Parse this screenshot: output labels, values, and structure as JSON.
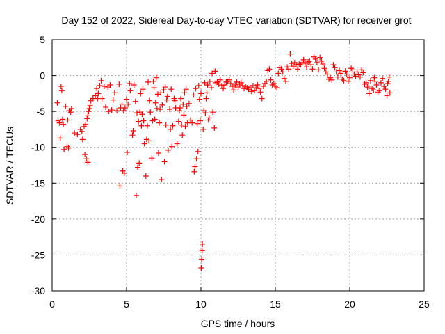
{
  "chart_data": {
    "type": "scatter",
    "title": "Day 152 of 2022, Sidereal Day-to-day VTEC variation (SDTVAR) for receiver grot",
    "xlabel": "GPS time / hours",
    "ylabel": "SDTVAR / TECUs",
    "xlim": [
      0,
      25
    ],
    "ylim": [
      -30,
      5
    ],
    "xticks": [
      "0",
      "5",
      "10",
      "15",
      "20",
      "25"
    ],
    "yticks": [
      "5",
      "0",
      "-5",
      "-10",
      "-15",
      "-20",
      "-25",
      "-30"
    ],
    "grid": true,
    "marker": "plus",
    "color": "#ff0000",
    "series": [
      {
        "name": "SDTVAR",
        "points": [
          [
            0.35,
            -3.8
          ],
          [
            0.4,
            -6.3
          ],
          [
            0.5,
            -6.6
          ],
          [
            0.55,
            -8.7
          ],
          [
            0.6,
            -1.5
          ],
          [
            0.65,
            -2.1
          ],
          [
            0.7,
            -6.1
          ],
          [
            0.75,
            -6.8
          ],
          [
            0.8,
            -10.3
          ],
          [
            0.9,
            -4.3
          ],
          [
            1.0,
            -9.9
          ],
          [
            1.05,
            -6.2
          ],
          [
            1.1,
            -10.1
          ],
          [
            1.15,
            -4.9
          ],
          [
            1.25,
            -5.1
          ],
          [
            1.3,
            -4.6
          ],
          [
            1.5,
            -8.0
          ],
          [
            1.7,
            -8.2
          ],
          [
            1.9,
            -7.5
          ],
          [
            2.0,
            -7.8
          ],
          [
            2.05,
            -8.9
          ],
          [
            2.15,
            -7.1
          ],
          [
            2.2,
            -11.0
          ],
          [
            2.25,
            -6.8
          ],
          [
            2.3,
            -11.6
          ],
          [
            2.35,
            -6.0
          ],
          [
            2.4,
            -5.6
          ],
          [
            2.4,
            -12.1
          ],
          [
            2.45,
            -5.0
          ],
          [
            2.5,
            -4.6
          ],
          [
            2.55,
            -4.2
          ],
          [
            2.6,
            -3.5
          ],
          [
            2.75,
            -3.2
          ],
          [
            2.9,
            -2.8
          ],
          [
            3.0,
            -1.8
          ],
          [
            3.05,
            -3.2
          ],
          [
            3.1,
            -2.5
          ],
          [
            3.2,
            -1.4
          ],
          [
            3.3,
            -0.7
          ],
          [
            3.35,
            -3.2
          ],
          [
            3.5,
            -1.5
          ],
          [
            3.6,
            -4.4
          ],
          [
            3.75,
            -1.6
          ],
          [
            3.8,
            -5.0
          ],
          [
            3.9,
            -1.3
          ],
          [
            4.0,
            -4.8
          ],
          [
            4.1,
            -3.4
          ],
          [
            4.2,
            -2.4
          ],
          [
            4.35,
            -4.9
          ],
          [
            4.5,
            -1.2
          ],
          [
            4.55,
            -15.4
          ],
          [
            4.6,
            -4.5
          ],
          [
            4.7,
            -4.0
          ],
          [
            4.75,
            -13.3
          ],
          [
            4.8,
            -4.9
          ],
          [
            4.85,
            -13.6
          ],
          [
            4.9,
            -4.5
          ],
          [
            5.0,
            -3.3
          ],
          [
            5.05,
            -10.7
          ],
          [
            5.1,
            -4.0
          ],
          [
            5.2,
            -1.1
          ],
          [
            5.25,
            -2.1
          ],
          [
            5.4,
            -8.3
          ],
          [
            5.45,
            -7.7
          ],
          [
            5.5,
            -1.3
          ],
          [
            5.6,
            -3.6
          ],
          [
            5.65,
            -16.7
          ],
          [
            5.7,
            -5.2
          ],
          [
            5.75,
            -12.8
          ],
          [
            5.8,
            -6.4
          ],
          [
            5.85,
            -12.2
          ],
          [
            5.9,
            -5.1
          ],
          [
            5.95,
            -2.5
          ],
          [
            6.0,
            -7.0
          ],
          [
            6.05,
            -5.4
          ],
          [
            6.1,
            -1.9
          ],
          [
            6.15,
            -6.3
          ],
          [
            6.2,
            -9.5
          ],
          [
            6.3,
            -14.0
          ],
          [
            6.35,
            -8.9
          ],
          [
            6.4,
            -7.0
          ],
          [
            6.45,
            -0.9
          ],
          [
            6.5,
            -9.1
          ],
          [
            6.55,
            -3.5
          ],
          [
            6.6,
            -5.1
          ],
          [
            6.7,
            -11.5
          ],
          [
            6.75,
            -6.3
          ],
          [
            6.8,
            -0.8
          ],
          [
            6.85,
            -1.7
          ],
          [
            6.9,
            -6.1
          ],
          [
            6.95,
            -3.8
          ],
          [
            7.0,
            -0.3
          ],
          [
            7.05,
            -4.6
          ],
          [
            7.1,
            -2.6
          ],
          [
            7.15,
            -10.8
          ],
          [
            7.2,
            -6.6
          ],
          [
            7.25,
            -4.7
          ],
          [
            7.3,
            -2.4
          ],
          [
            7.35,
            -14.5
          ],
          [
            7.4,
            -4.1
          ],
          [
            7.5,
            -2.0
          ],
          [
            7.55,
            -12.0
          ],
          [
            7.6,
            -1.6
          ],
          [
            7.65,
            -6.9
          ],
          [
            7.7,
            -3.4
          ],
          [
            7.75,
            -2.9
          ],
          [
            7.8,
            -10.4
          ],
          [
            7.9,
            -4.7
          ],
          [
            7.95,
            -7.5
          ],
          [
            8.0,
            -1.9
          ],
          [
            8.05,
            -9.9
          ],
          [
            8.1,
            -7.0
          ],
          [
            8.2,
            -3.2
          ],
          [
            8.25,
            -3.5
          ],
          [
            8.3,
            -4.5
          ],
          [
            8.4,
            -9.5
          ],
          [
            8.5,
            -6.4
          ],
          [
            8.55,
            -4.9
          ],
          [
            8.6,
            -4.5
          ],
          [
            8.65,
            -3.2
          ],
          [
            8.7,
            -6.9
          ],
          [
            8.75,
            -8.3
          ],
          [
            8.8,
            -4.0
          ],
          [
            8.85,
            -5.5
          ],
          [
            8.9,
            -2.4
          ],
          [
            8.95,
            -7.1
          ],
          [
            9.0,
            -1.9
          ],
          [
            9.05,
            -4.3
          ],
          [
            9.1,
            -6.6
          ],
          [
            9.2,
            -3.9
          ],
          [
            9.3,
            -6.2
          ],
          [
            9.4,
            -6.6
          ],
          [
            9.5,
            -2.7
          ],
          [
            9.55,
            -13.4
          ],
          [
            9.6,
            -12.7
          ],
          [
            9.65,
            -1.8
          ],
          [
            9.7,
            -11.6
          ],
          [
            9.75,
            -6.7
          ],
          [
            9.8,
            -10.6
          ],
          [
            9.85,
            -1.4
          ],
          [
            9.9,
            -3.3
          ],
          [
            9.95,
            -6.3
          ],
          [
            10.0,
            -2.5
          ],
          [
            10.02,
            -26.8
          ],
          [
            10.05,
            -25.6
          ],
          [
            10.08,
            -24.4
          ],
          [
            10.1,
            -23.5
          ],
          [
            10.15,
            -7.5
          ],
          [
            10.2,
            -4.9
          ],
          [
            10.25,
            -1.0
          ],
          [
            10.3,
            -5.2
          ],
          [
            10.35,
            -3.2
          ],
          [
            10.4,
            -2.4
          ],
          [
            10.45,
            -1.3
          ],
          [
            10.5,
            -6.2
          ],
          [
            10.55,
            -5.9
          ],
          [
            10.6,
            -0.8
          ],
          [
            10.7,
            -1.7
          ],
          [
            10.75,
            0.3
          ],
          [
            10.8,
            -5.1
          ],
          [
            10.9,
            -7.3
          ],
          [
            10.95,
            0.6
          ],
          [
            11.0,
            -1.0
          ],
          [
            11.1,
            -0.9
          ],
          [
            11.2,
            -1.2
          ],
          [
            11.3,
            -0.6
          ],
          [
            11.4,
            -1.4
          ],
          [
            11.5,
            -1.8
          ],
          [
            11.6,
            -1.3
          ],
          [
            11.7,
            -0.9
          ],
          [
            11.8,
            -0.8
          ],
          [
            11.9,
            -0.6
          ],
          [
            12.0,
            -1.1
          ],
          [
            12.1,
            -1.5
          ],
          [
            12.2,
            -2.0
          ],
          [
            12.3,
            -1.3
          ],
          [
            12.4,
            -0.9
          ],
          [
            12.5,
            -1.6
          ],
          [
            12.6,
            -1.2
          ],
          [
            12.7,
            -1.0
          ],
          [
            12.8,
            -1.4
          ],
          [
            12.9,
            -1.8
          ],
          [
            13.0,
            -1.5
          ],
          [
            13.1,
            -1.7
          ],
          [
            13.2,
            -1.9
          ],
          [
            13.3,
            -1.6
          ],
          [
            13.4,
            -2.2
          ],
          [
            13.5,
            -1.4
          ],
          [
            13.6,
            -2.1
          ],
          [
            13.7,
            -1.7
          ],
          [
            13.8,
            -1.3
          ],
          [
            13.9,
            -1.8
          ],
          [
            14.0,
            -2.3
          ],
          [
            14.1,
            -3.2
          ],
          [
            14.2,
            -1.5
          ],
          [
            14.3,
            -1.1
          ],
          [
            14.4,
            -0.8
          ],
          [
            14.5,
            0.7
          ],
          [
            14.6,
            0.9
          ],
          [
            14.7,
            -0.6
          ],
          [
            14.8,
            -1.3
          ],
          [
            14.9,
            -1.1
          ],
          [
            15.0,
            -1.5
          ],
          [
            15.1,
            -1.7
          ],
          [
            15.2,
            0.3
          ],
          [
            15.3,
            1.1
          ],
          [
            15.4,
            0.9
          ],
          [
            15.5,
            0.5
          ],
          [
            15.6,
            -0.4
          ],
          [
            15.7,
            -0.8
          ],
          [
            15.8,
            1.2
          ],
          [
            15.9,
            0.9
          ],
          [
            16.0,
            3.0
          ],
          [
            16.1,
            1.7
          ],
          [
            16.2,
            1.3
          ],
          [
            16.3,
            1.8
          ],
          [
            16.4,
            1.5
          ],
          [
            16.5,
            0.9
          ],
          [
            16.6,
            1.6
          ],
          [
            16.7,
            1.5
          ],
          [
            16.8,
            1.8
          ],
          [
            16.9,
            2.2
          ],
          [
            17.0,
            1.7
          ],
          [
            17.1,
            1.2
          ],
          [
            17.2,
            1.9
          ],
          [
            17.3,
            2.0
          ],
          [
            17.4,
            1.5
          ],
          [
            17.5,
            0.9
          ],
          [
            17.6,
            2.6
          ],
          [
            17.7,
            2.3
          ],
          [
            17.8,
            1.8
          ],
          [
            17.9,
            0.8
          ],
          [
            18.0,
            2.5
          ],
          [
            18.1,
            2.0
          ],
          [
            18.2,
            1.6
          ],
          [
            18.3,
            1.0
          ],
          [
            18.4,
            0.5
          ],
          [
            18.5,
            0.2
          ],
          [
            18.6,
            -0.5
          ],
          [
            18.7,
            -0.3
          ],
          [
            18.8,
            -0.6
          ],
          [
            18.9,
            1.5
          ],
          [
            19.0,
            1.1
          ],
          [
            19.1,
            0.5
          ],
          [
            19.2,
            -0.2
          ],
          [
            19.3,
            0.7
          ],
          [
            19.4,
            0.3
          ],
          [
            19.5,
            -0.5
          ],
          [
            19.6,
            -0.7
          ],
          [
            19.7,
            0.6
          ],
          [
            19.8,
            0.2
          ],
          [
            19.9,
            -0.8
          ],
          [
            20.0,
            -0.3
          ],
          [
            20.1,
            1.0
          ],
          [
            20.2,
            0.8
          ],
          [
            20.3,
            0.2
          ],
          [
            20.4,
            -0.1
          ],
          [
            20.5,
            0.5
          ],
          [
            20.6,
            0.1
          ],
          [
            20.7,
            -0.2
          ],
          [
            20.8,
            0.8
          ],
          [
            20.9,
            0.4
          ],
          [
            21.0,
            -1.2
          ],
          [
            21.1,
            -1.0
          ],
          [
            21.2,
            -1.6
          ],
          [
            21.3,
            -2.5
          ],
          [
            21.4,
            -0.7
          ],
          [
            21.5,
            -1.8
          ],
          [
            21.6,
            -2.0
          ],
          [
            21.65,
            -0.3
          ],
          [
            21.7,
            -0.8
          ],
          [
            21.8,
            -1.3
          ],
          [
            21.9,
            -2.3
          ],
          [
            22.0,
            -2.1
          ],
          [
            22.1,
            -1.0
          ],
          [
            22.2,
            -0.4
          ],
          [
            22.3,
            -1.5
          ],
          [
            22.4,
            -1.9
          ],
          [
            22.5,
            -2.8
          ],
          [
            22.55,
            -1.1
          ],
          [
            22.6,
            -0.8
          ],
          [
            22.65,
            -0.2
          ],
          [
            22.7,
            -2.4
          ]
        ]
      }
    ]
  }
}
